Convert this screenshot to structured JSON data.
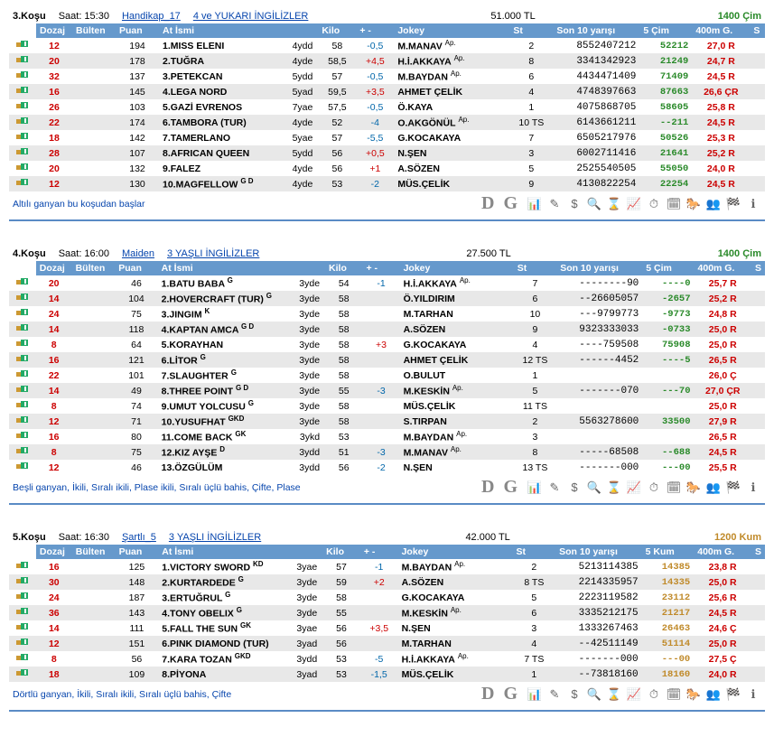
{
  "colors": {
    "turf": "#2a8a2a",
    "sand": "#c08a2a",
    "red": "#c00",
    "blue": "#06a",
    "header": "#6699cc"
  },
  "headers": {
    "dozaj": "Dozaj",
    "bulten": "Bülten",
    "puan": "Puan",
    "at": "At İsmi",
    "kilo": "Kilo",
    "spread": "+ -",
    "jokey": "Jokey",
    "st": "St",
    "last10": "Son 10 yarışı",
    "cim": "5 Çim",
    "kum": "5 Kum",
    "m400": "400m G.",
    "s": "S"
  },
  "races": [
    {
      "no": "3.Koşu",
      "time": "Saat: 15:30",
      "link1": "Handikap_17",
      "link2": "4 ve YUKARI İNGİLİZLER",
      "prize": "51.000 TL",
      "dist": "1400 Çim",
      "dist_color": "turf",
      "col5": "5 Çim",
      "rows": [
        {
          "dozaj": "12",
          "bulten": "",
          "puan": "194",
          "horse": "1.MISS ELENI",
          "sup": "",
          "age": "4ydd",
          "kilo": "58",
          "spread": "-0,5",
          "jokey": "M.MANAV",
          "ap": "Ap.",
          "st": "2",
          "last10": "8552407212",
          "c5": "52212",
          "m400": "27,0 R"
        },
        {
          "dozaj": "20",
          "bulten": "",
          "puan": "178",
          "horse": "2.TUĞRA",
          "sup": "",
          "age": "4yde",
          "kilo": "58,5",
          "spread": "+4,5",
          "jokey": "H.İ.AKKAYA",
          "ap": "Ap.",
          "st": "8",
          "last10": "3341342923",
          "c5": "21249",
          "m400": "24,7 R"
        },
        {
          "dozaj": "32",
          "bulten": "",
          "puan": "137",
          "horse": "3.PETEKCAN",
          "sup": "",
          "age": "5ydd",
          "kilo": "57",
          "spread": "-0,5",
          "jokey": "M.BAYDAN",
          "ap": "Ap.",
          "st": "6",
          "last10": "4434471409",
          "c5": "71409",
          "m400": "24,5 R"
        },
        {
          "dozaj": "16",
          "bulten": "",
          "puan": "145",
          "horse": "4.LEGA NORD",
          "sup": "",
          "age": "5yad",
          "kilo": "59,5",
          "spread": "+3,5",
          "jokey": "AHMET ÇELİK",
          "ap": "",
          "st": "4",
          "last10": "4748397663",
          "c5": "87663",
          "m400": "26,6 ÇR"
        },
        {
          "dozaj": "26",
          "bulten": "",
          "puan": "103",
          "horse": "5.GAZİ EVRENOS",
          "sup": "",
          "age": "7yae",
          "kilo": "57,5",
          "spread": "-0,5",
          "jokey": "Ö.KAYA",
          "ap": "",
          "st": "1",
          "last10": "4075868705",
          "c5": "58605",
          "m400": "25,8 R"
        },
        {
          "dozaj": "22",
          "bulten": "",
          "puan": "174",
          "horse": "6.TAMBORA (TUR)",
          "sup": "",
          "age": "4yde",
          "kilo": "52",
          "spread": "-4",
          "jokey": "O.AKGÖNÜL",
          "ap": "Ap.",
          "st": "10 TS",
          "last10": "6143661211",
          "c5": "--211",
          "m400": "24,5 R"
        },
        {
          "dozaj": "18",
          "bulten": "",
          "puan": "142",
          "horse": "7.TAMERLANO",
          "sup": "",
          "age": "5yae",
          "kilo": "57",
          "spread": "-5,5",
          "jokey": "G.KOCAKAYA",
          "ap": "",
          "st": "7",
          "last10": "6505217976",
          "c5": "50526",
          "m400": "25,3 R"
        },
        {
          "dozaj": "28",
          "bulten": "",
          "puan": "107",
          "horse": "8.AFRICAN QUEEN",
          "sup": "",
          "age": "5ydd",
          "kilo": "56",
          "spread": "+0,5",
          "jokey": "N.ŞEN",
          "ap": "",
          "st": "3",
          "last10": "6002711416",
          "c5": "21641",
          "m400": "25,2 R"
        },
        {
          "dozaj": "20",
          "bulten": "",
          "puan": "132",
          "horse": "9.FALEZ",
          "sup": "",
          "age": "4yde",
          "kilo": "56",
          "spread": "+1",
          "jokey": "A.SÖZEN",
          "ap": "",
          "st": "5",
          "last10": "2525540505",
          "c5": "55050",
          "m400": "24,0 R"
        },
        {
          "dozaj": "12",
          "bulten": "",
          "puan": "130",
          "horse": "10.MAGFELLOW",
          "sup": "G D",
          "age": "4yde",
          "kilo": "53",
          "spread": "-2",
          "jokey": "MÜS.ÇELİK",
          "ap": "",
          "st": "9",
          "last10": "4130822254",
          "c5": "22254",
          "m400": "24,5 R"
        }
      ],
      "foot": "Altılı ganyan bu koşudan başlar"
    },
    {
      "no": "4.Koşu",
      "time": "Saat: 16:00",
      "link1": "Maiden",
      "link2": "3 YAŞLI İNGİLİZLER",
      "prize": "27.500 TL",
      "dist": "1400 Çim",
      "dist_color": "turf",
      "col5": "5 Çim",
      "rows": [
        {
          "dozaj": "20",
          "bulten": "",
          "puan": "46",
          "horse": "1.BATU BABA",
          "sup": "G",
          "age": "3yde",
          "kilo": "54",
          "spread": "-1",
          "jokey": "H.İ.AKKAYA",
          "ap": "Ap.",
          "st": "7",
          "last10": "--------90",
          "c5": "----0",
          "m400": "25,7 R"
        },
        {
          "dozaj": "14",
          "bulten": "",
          "puan": "104",
          "horse": "2.HOVERCRAFT (TUR)",
          "sup": "G",
          "age": "3yde",
          "kilo": "58",
          "spread": "",
          "jokey": "Ö.YILDIRIM",
          "ap": "",
          "st": "6",
          "last10": "--26605057",
          "c5": "-2657",
          "m400": "25,2 R"
        },
        {
          "dozaj": "24",
          "bulten": "",
          "puan": "75",
          "horse": "3.JINGIM",
          "sup": "K",
          "age": "3yde",
          "kilo": "58",
          "spread": "",
          "jokey": "M.TARHAN",
          "ap": "",
          "st": "10",
          "last10": "---9799773",
          "c5": "-9773",
          "m400": "24,8 R"
        },
        {
          "dozaj": "14",
          "bulten": "",
          "puan": "118",
          "horse": "4.KAPTAN AMCA",
          "sup": "G D",
          "age": "3yde",
          "kilo": "58",
          "spread": "",
          "jokey": "A.SÖZEN",
          "ap": "",
          "st": "9",
          "last10": "9323333033",
          "c5": "-0733",
          "m400": "25,0 R"
        },
        {
          "dozaj": "8",
          "bulten": "",
          "puan": "64",
          "horse": "5.KORAYHAN",
          "sup": "",
          "age": "3yde",
          "kilo": "58",
          "spread": "+3",
          "jokey": "G.KOCAKAYA",
          "ap": "",
          "st": "4",
          "last10": "----759508",
          "c5": "75908",
          "m400": "25,0 R"
        },
        {
          "dozaj": "16",
          "bulten": "",
          "puan": "121",
          "horse": "6.LİTOR",
          "sup": "G",
          "age": "3yde",
          "kilo": "58",
          "spread": "",
          "jokey": "AHMET ÇELİK",
          "ap": "",
          "st": "12 TS",
          "last10": "------4452",
          "c5": "----5",
          "m400": "26,5 R"
        },
        {
          "dozaj": "22",
          "bulten": "",
          "puan": "101",
          "horse": "7.SLAUGHTER",
          "sup": "G",
          "age": "3yde",
          "kilo": "58",
          "spread": "",
          "jokey": "O.BULUT",
          "ap": "",
          "st": "1",
          "last10": "",
          "c5": "",
          "m400": "26,0 Ç"
        },
        {
          "dozaj": "14",
          "bulten": "",
          "puan": "49",
          "horse": "8.THREE POINT",
          "sup": "G D",
          "age": "3yde",
          "kilo": "55",
          "spread": "-3",
          "jokey": "M.KESKİN",
          "ap": "Ap.",
          "st": "5",
          "last10": "-------070",
          "c5": "---70",
          "m400": "27,0 ÇR"
        },
        {
          "dozaj": "8",
          "bulten": "",
          "puan": "74",
          "horse": "9.UMUT YOLCUSU",
          "sup": "G",
          "age": "3yde",
          "kilo": "58",
          "spread": "",
          "jokey": "MÜS.ÇELİK",
          "ap": "",
          "st": "11 TS",
          "last10": "",
          "c5": "",
          "m400": "25,0 R"
        },
        {
          "dozaj": "12",
          "bulten": "",
          "puan": "71",
          "horse": "10.YUSUFHAT",
          "sup": "GKD",
          "age": "3yde",
          "kilo": "58",
          "spread": "",
          "jokey": "S.TIRPAN",
          "ap": "",
          "st": "2",
          "last10": "5563278600",
          "c5": "33500",
          "m400": "27,9 R"
        },
        {
          "dozaj": "16",
          "bulten": "",
          "puan": "80",
          "horse": "11.COME BACK",
          "sup": "GK",
          "age": "3ykd",
          "kilo": "53",
          "spread": "",
          "jokey": "M.BAYDAN",
          "ap": "Ap.",
          "st": "3",
          "last10": "",
          "c5": "",
          "m400": "26,5 R"
        },
        {
          "dozaj": "8",
          "bulten": "",
          "puan": "75",
          "horse": "12.KIZ AYŞE",
          "sup": "D",
          "age": "3ydd",
          "kilo": "51",
          "spread": "-3",
          "jokey": "M.MANAV",
          "ap": "Ap.",
          "st": "8",
          "last10": "-----68508",
          "c5": "--688",
          "m400": "24,5 R"
        },
        {
          "dozaj": "12",
          "bulten": "",
          "puan": "46",
          "horse": "13.ÖZGÜLÜM",
          "sup": "",
          "age": "3ydd",
          "kilo": "56",
          "spread": "-2",
          "jokey": "N.ŞEN",
          "ap": "",
          "st": "13 TS",
          "last10": "-------000",
          "c5": "---00",
          "m400": "25,5 R"
        }
      ],
      "foot": "Beşli ganyan, İkili, Sıralı ikili, Plase ikili, Sıralı üçlü bahis, Çifte, Plase"
    },
    {
      "no": "5.Koşu",
      "time": "Saat: 16:30",
      "link1": "Şartlı_5",
      "link2": "3 YAŞLI İNGİLİZLER",
      "prize": "42.000 TL",
      "dist": "1200 Kum",
      "dist_color": "sand",
      "col5": "5 Kum",
      "rows": [
        {
          "dozaj": "16",
          "bulten": "",
          "puan": "125",
          "horse": "1.VICTORY SWORD",
          "sup": "KD",
          "age": "3yae",
          "kilo": "57",
          "spread": "-1",
          "jokey": "M.BAYDAN",
          "ap": "Ap.",
          "st": "2",
          "last10": "5213114385",
          "c5": "14385",
          "m400": "23,8 R"
        },
        {
          "dozaj": "30",
          "bulten": "",
          "puan": "148",
          "horse": "2.KURTARDEDE",
          "sup": "G",
          "age": "3yde",
          "kilo": "59",
          "spread": "+2",
          "jokey": "A.SÖZEN",
          "ap": "",
          "st": "8 TS",
          "last10": "2214335957",
          "c5": "14335",
          "m400": "25,0 R"
        },
        {
          "dozaj": "24",
          "bulten": "",
          "puan": "187",
          "horse": "3.ERTUĞRUL",
          "sup": "G",
          "age": "3yde",
          "kilo": "58",
          "spread": "",
          "jokey": "G.KOCAKAYA",
          "ap": "",
          "st": "5",
          "last10": "2223119582",
          "c5": "23112",
          "m400": "25,6 R"
        },
        {
          "dozaj": "36",
          "bulten": "",
          "puan": "143",
          "horse": "4.TONY OBELIX",
          "sup": "G",
          "age": "3yde",
          "kilo": "55",
          "spread": "",
          "jokey": "M.KESKİN",
          "ap": "Ap.",
          "st": "6",
          "last10": "3335212175",
          "c5": "21217",
          "m400": "24,5 R"
        },
        {
          "dozaj": "14",
          "bulten": "",
          "puan": "111",
          "horse": "5.FALL THE SUN",
          "sup": "GK",
          "age": "3yae",
          "kilo": "56",
          "spread": "+3,5",
          "jokey": "N.ŞEN",
          "ap": "",
          "st": "3",
          "last10": "1333267463",
          "c5": "26463",
          "m400": "24,6 Ç"
        },
        {
          "dozaj": "12",
          "bulten": "",
          "puan": "151",
          "horse": "6.PINK DIAMOND (TUR)",
          "sup": "",
          "age": "3yad",
          "kilo": "56",
          "spread": "",
          "jokey": "M.TARHAN",
          "ap": "",
          "st": "4",
          "last10": "--42511149",
          "c5": "51114",
          "m400": "25,0 R"
        },
        {
          "dozaj": "8",
          "bulten": "",
          "puan": "56",
          "horse": "7.KARA TOZAN",
          "sup": "GKD",
          "age": "3ydd",
          "kilo": "53",
          "spread": "-5",
          "jokey": "H.İ.AKKAYA",
          "ap": "Ap.",
          "st": "7 TS",
          "last10": "-------000",
          "c5": "---00",
          "m400": "27,5 Ç"
        },
        {
          "dozaj": "18",
          "bulten": "",
          "puan": "109",
          "horse": "8.PİYONA",
          "sup": "",
          "age": "3yad",
          "kilo": "53",
          "spread": "-1,5",
          "jokey": "MÜS.ÇELİK",
          "ap": "",
          "st": "1",
          "last10": "--73818160",
          "c5": "18160",
          "m400": "24,0 R"
        }
      ],
      "foot": "Dörtlü ganyan, İkili, Sıralı ikili, Sıralı üçlü bahis, Çifte"
    }
  ],
  "icons": [
    "📊",
    "✎",
    "$",
    "🔍",
    "⌛",
    "📈",
    "⏱",
    "🗓",
    "🐎",
    "👥",
    "🏁",
    "ℹ"
  ]
}
